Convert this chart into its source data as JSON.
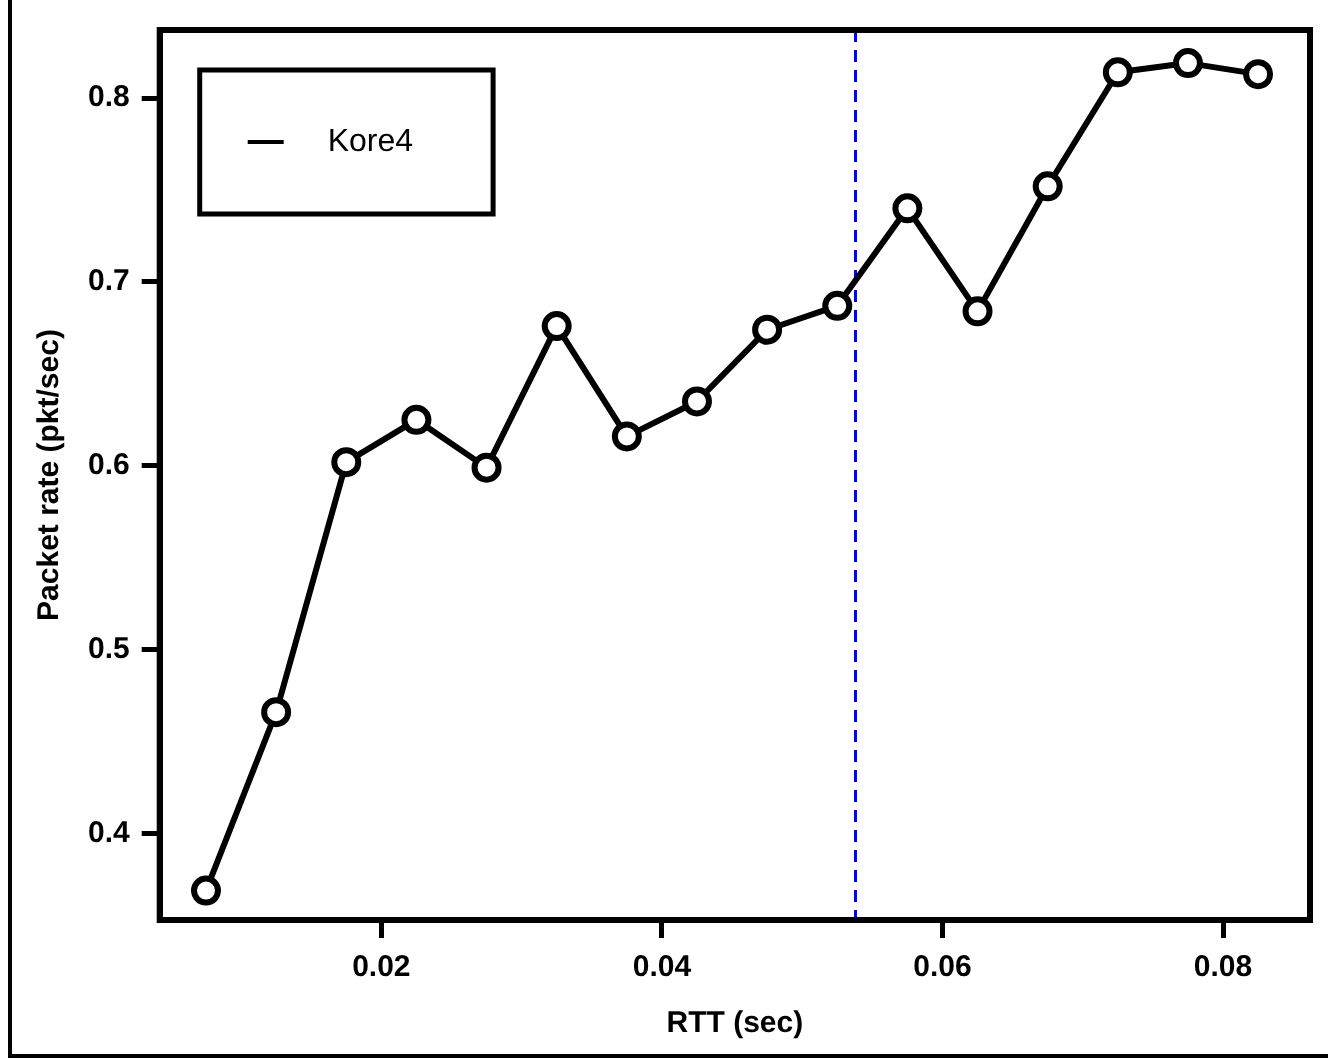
{
  "chart_data": {
    "type": "line",
    "xlabel": "RTT (sec)",
    "ylabel": "Packet rate (pkt/sec)",
    "x": [
      0.0075,
      0.0125,
      0.0175,
      0.0225,
      0.0275,
      0.0325,
      0.0375,
      0.0425,
      0.0475,
      0.0525,
      0.0575,
      0.0625,
      0.0675,
      0.0725,
      0.0775,
      0.0825
    ],
    "series": [
      {
        "name": "Kore4",
        "color": "#000000",
        "values": [
          0.369,
          0.466,
          0.602,
          0.625,
          0.599,
          0.676,
          0.616,
          0.635,
          0.674,
          0.687,
          0.74,
          0.684,
          0.752,
          0.814,
          0.819,
          0.813
        ]
      }
    ],
    "xlim": [
      0.0042,
      0.0862
    ],
    "xticks": [
      0.02,
      0.04,
      0.06,
      0.08
    ],
    "ylim": [
      0.353,
      0.837
    ],
    "yticks": [
      0.4,
      0.5,
      0.6,
      0.7,
      0.8
    ],
    "ref_lines": [
      {
        "axis": "x",
        "value": 0.0538,
        "color": "#0000ff",
        "line_style": "dashed"
      }
    ],
    "legend": "top left",
    "marker": "circle",
    "line_style": "solid",
    "grid": false
  }
}
